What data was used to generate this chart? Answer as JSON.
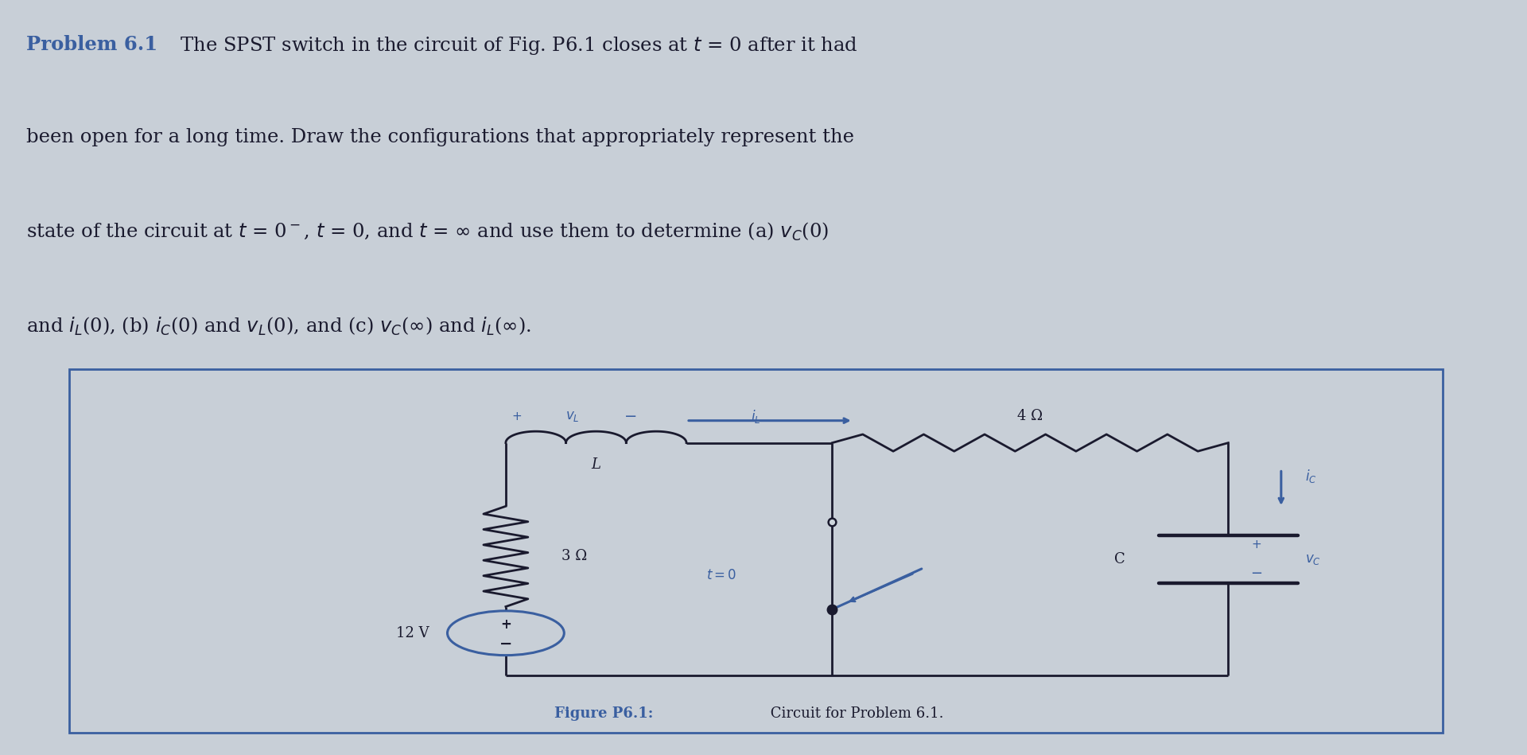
{
  "bg_color": "#c8cfd7",
  "fig_box_color": "#cdd5dc",
  "text_color": "#1a1a2e",
  "blue_color": "#3a5fa0",
  "circuit_line_color": "#1a1a2e",
  "border_color": "#3a5fa0",
  "problem_label": "Problem 6.1",
  "line1_rest": "  The SPST switch in the circuit of Fig. P6.1 closes at $t$ = 0 after it had",
  "line2": "been open for a long time. Draw the configurations that appropriately represent the",
  "line3": "state of the circuit at $t$ = 0$^-$, $t$ = 0, and $t$ = $\\infty$ and use them to determine (a) $v_C$(0)",
  "line4": "and $i_L$(0), (b) $i_C$(0) and $v_L$(0), and (c) $v_C$($\\infty$) and $i_L$($\\infty$).",
  "caption_bold": "Figure P6.1:",
  "caption_rest": " Circuit for Problem 6.1.",
  "vs_label": "12 V",
  "res3_label": "3 Ω",
  "res4_label": "4 Ω",
  "L_label": "L",
  "C_label": "C"
}
